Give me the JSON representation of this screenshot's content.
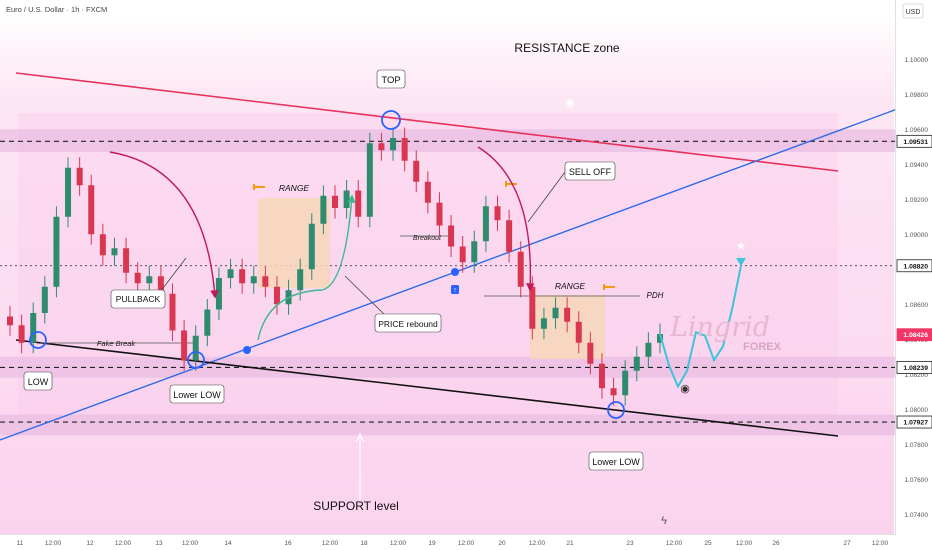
{
  "header": {
    "symbol_title": "Euro / U.S. Dollar · 1h · FXCM",
    "currency": "USD"
  },
  "watermark": {
    "brand": "Lingrid",
    "sub": "FOREX"
  },
  "colors": {
    "background": "#fde4f4",
    "zone": "#e9bde3",
    "resistance_line": "#e8315b",
    "trend_line": "#2f6be8",
    "support_line": "#111111",
    "candle_up": "#2e8b6e",
    "candle_down": "#d93651",
    "range_box": "#f6d7b9",
    "projection": "#3dc4d9",
    "highlight_circle": "#2962ff",
    "price_label_red": "#f23668",
    "arrow": "#c2185b",
    "rebound": "#3cb98a"
  },
  "chart_data": {
    "type": "candlestick",
    "title": "Euro / U.S. Dollar · 1h · FXCM",
    "ylabel": "USD",
    "ylim": [
      1.0735,
      1.1015
    ],
    "y_ticks": [
      "1.10000",
      "1.09800",
      "1.09600",
      "1.09400",
      "1.09200",
      "1.09000",
      "1.08800",
      "1.08600",
      "1.08400",
      "1.08200",
      "1.08000",
      "1.07800",
      "1.07600",
      "1.07400"
    ],
    "x_ticks": [
      "11",
      "12:00",
      "12",
      "12:00",
      "13",
      "12:00",
      "14",
      "16",
      "12:00",
      "18",
      "12:00",
      "19",
      "12:00",
      "20",
      "12:00",
      "21",
      "23",
      "12:00",
      "25",
      "12:00",
      "26",
      "27",
      "12:00"
    ],
    "price_labels": [
      {
        "value": "1.09531",
        "style": "level"
      },
      {
        "value": "1.08820",
        "style": "level"
      },
      {
        "value": "1.08426",
        "style": "current"
      },
      {
        "value": "1.08239",
        "style": "level"
      },
      {
        "value": "1.07927",
        "style": "level"
      }
    ],
    "zones": [
      {
        "name": "resistance",
        "from": 1.0947,
        "to": 1.096
      },
      {
        "name": "mid-support",
        "from": 1.0818,
        "to": 1.083
      },
      {
        "name": "support",
        "from": 1.0785,
        "to": 1.0797
      }
    ],
    "levels": [
      1.09531,
      1.0882,
      1.08239,
      1.07927
    ],
    "series_close": [
      1.0848,
      1.0838,
      1.0855,
      1.087,
      1.091,
      1.0938,
      1.0928,
      1.09,
      1.0888,
      1.0892,
      1.0878,
      1.0872,
      1.0876,
      1.0866,
      1.0845,
      1.0828,
      1.0842,
      1.0857,
      1.0875,
      1.088,
      1.0872,
      1.0876,
      1.087,
      1.086,
      1.0868,
      1.088,
      1.0906,
      1.0922,
      1.0915,
      1.0925,
      1.091,
      1.0952,
      1.0948,
      1.0955,
      1.0942,
      1.093,
      1.0918,
      1.0905,
      1.0893,
      1.0884,
      1.0896,
      1.0916,
      1.0908,
      1.089,
      1.087,
      1.0846,
      1.0852,
      1.0858,
      1.085,
      1.0838,
      1.0826,
      1.0812,
      1.0808,
      1.0822,
      1.083,
      1.0838,
      1.0843
    ],
    "projection": [
      1.0843,
      1.0825,
      1.0813,
      1.0822,
      1.0844,
      1.0842,
      1.0828,
      1.0836,
      1.0857,
      1.0882
    ],
    "annotations": [
      "RESISTANCE zone",
      "TOP",
      "SELL OFF",
      "RANGE",
      "RANGE",
      "PULLBACK",
      "PRICE rebound",
      "Fake Break",
      "Breakout",
      "PDH",
      "LOW",
      "Lower LOW",
      "Lower LOW",
      "SUPPORT level"
    ]
  }
}
